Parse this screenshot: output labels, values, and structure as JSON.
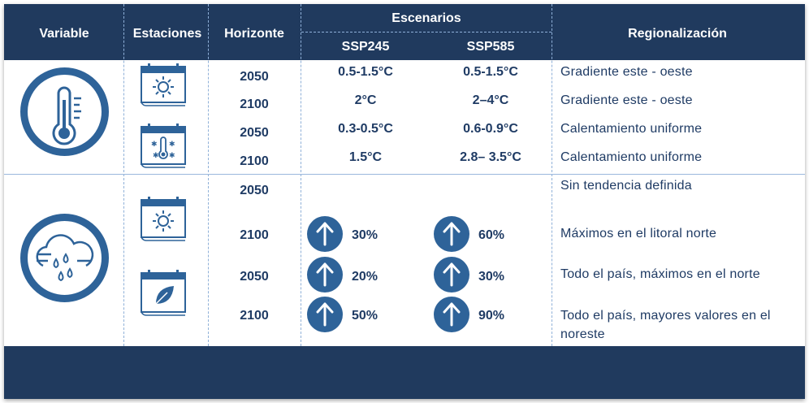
{
  "header": {
    "variable": "Variable",
    "estaciones": "Estaciones",
    "horizonte": "Horizonte",
    "escenarios": "Escenarios",
    "ssp245": "SSP245",
    "ssp585": "SSP585",
    "regionalizacion": "Regionalización"
  },
  "temperature": {
    "icon": "thermometer-icon",
    "rows": [
      {
        "horizon": "2050",
        "ssp245": "0.5-1.5°C",
        "ssp585": "0.5-1.5°C",
        "region": "Gradiente este - oeste"
      },
      {
        "horizon": "2100",
        "ssp245": "2°C",
        "ssp585": "2–4°C",
        "region": "Gradiente este - oeste"
      },
      {
        "horizon": "2050",
        "ssp245": "0.3-0.5°C",
        "ssp585": "0.6-0.9°C",
        "region": "Calentamiento uniforme"
      },
      {
        "horizon": "2100",
        "ssp245": "1.5°C",
        "ssp585": "2.8– 3.5°C",
        "region": "Calentamiento uniforme"
      }
    ]
  },
  "precipitation": {
    "icon": "rain-cloud-icon",
    "rows": [
      {
        "horizon": "2050",
        "region": "Sin tendencia definida"
      },
      {
        "horizon": "2100",
        "ssp245": "30%",
        "ssp585": "60%",
        "region": "Máximos en el litoral norte"
      },
      {
        "horizon": "2050",
        "ssp245": "20%",
        "ssp585": "30%",
        "region": "Todo el país, máximos en el norte"
      },
      {
        "horizon": "2100",
        "ssp245": "50%",
        "ssp585": "90%",
        "region_line1": "Todo el país, mayores valores en el",
        "region_line2": "noreste"
      }
    ]
  },
  "colors": {
    "header_bg": "#203a5e",
    "text": "#1f3b64",
    "accent": "#2e6399",
    "separator": "#8fb0d8"
  }
}
